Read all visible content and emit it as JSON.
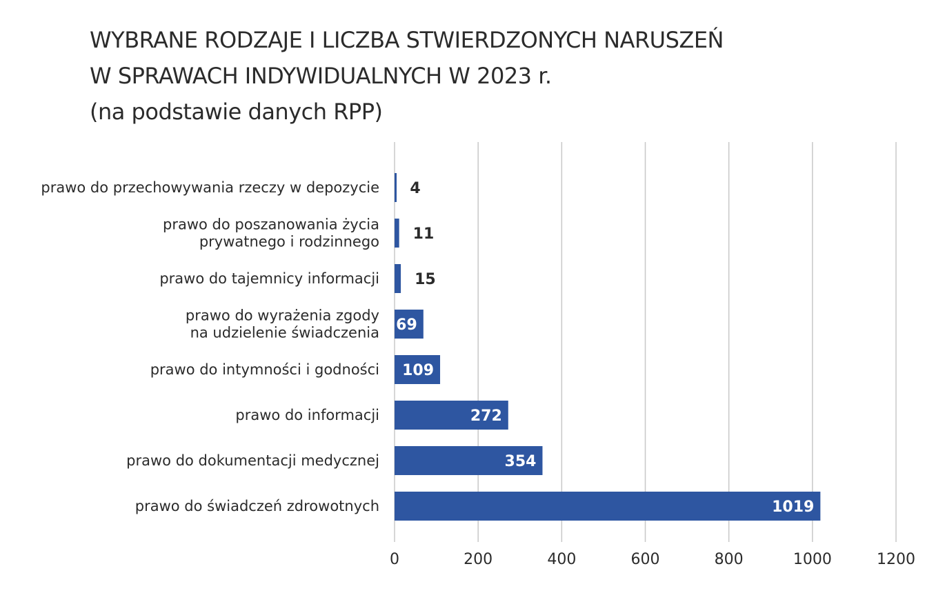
{
  "title": {
    "line1": "WYBRANE RODZAJE I LICZBA STWIERDZONYCH NARUSZEŃ",
    "line2": "W SPRAWACH INDYWIDUALNYCH W 2023 r.",
    "line3": "(na podstawie danych RPP)"
  },
  "colors": {
    "bar": "#2e56a1",
    "grid": "#c8c8c8",
    "text": "#2b2b2b"
  },
  "chart_data": {
    "type": "bar",
    "orientation": "horizontal",
    "title": "WYBRANE RODZAJE I LICZBA STWIERDZONYCH NARUSZEŃ W SPRAWACH INDYWIDUALNYCH W 2023 r. (na podstawie danych RPP)",
    "categories": [
      [
        "prawo do przechowywania rzeczy w depozycie"
      ],
      [
        "prawo do poszanowania życia",
        "prywatnego i rodzinnego"
      ],
      [
        "prawo do tajemnicy informacji"
      ],
      [
        "prawo do wyrażenia zgody",
        "na udzielenie świadczenia"
      ],
      [
        "prawo do intymności i godności"
      ],
      [
        "prawo do informacji"
      ],
      [
        "prawo do dokumentacji medycznej"
      ],
      [
        "prawo do świadczeń zdrowotnych"
      ]
    ],
    "values": [
      4,
      11,
      15,
      69,
      109,
      272,
      354,
      1019
    ],
    "xlim": [
      0,
      1200
    ],
    "xticks": [
      0,
      200,
      400,
      600,
      800,
      1000,
      1200
    ],
    "xlabel": "",
    "ylabel": "",
    "grid": true,
    "legend": "none"
  }
}
